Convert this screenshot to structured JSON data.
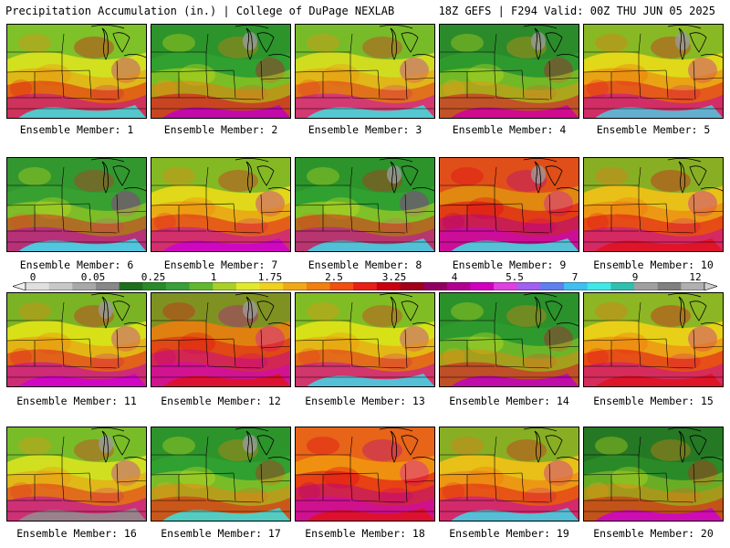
{
  "header": {
    "left": "Precipitation Accumulation (in.) | College of DuPage NEXLAB",
    "right": "18Z GEFS | F294 Valid: 00Z THU JUN 05 2025"
  },
  "panels": [
    {
      "label": "Ensemble Member: 1",
      "base": "#d2e020",
      "bands": [
        {
          "c": "#f08a10",
          "o": 0.45
        },
        {
          "c": "#e00010",
          "o": 0.45
        },
        {
          "c": "#c000a0",
          "o": 0.5
        }
      ],
      "bottom": "#40e0e0",
      "north": "#38a830",
      "gray": 0
    },
    {
      "label": "Ensemble Member: 2",
      "base": "#30a030",
      "bands": [
        {
          "c": "#d8e018",
          "o": 0.45
        },
        {
          "c": "#f07810",
          "o": 0.5
        },
        {
          "c": "#d8002a",
          "o": 0.55
        }
      ],
      "bottom": "#c000c0",
      "north": "#2a8a28",
      "gray": 1
    },
    {
      "label": "Ensemble Member: 3",
      "base": "#d0dc20",
      "bands": [
        {
          "c": "#f09010",
          "o": 0.5
        },
        {
          "c": "#e02020",
          "o": 0.45
        },
        {
          "c": "#c800c8",
          "o": 0.5
        }
      ],
      "bottom": "#40e0e0",
      "north": "#30a030",
      "gray": 0
    },
    {
      "label": "Ensemble Member: 4",
      "base": "#2e9a2e",
      "bands": [
        {
          "c": "#c8e020",
          "o": 0.45
        },
        {
          "c": "#f09010",
          "o": 0.45
        },
        {
          "c": "#d80030",
          "o": 0.5
        }
      ],
      "bottom": "#d000a0",
      "north": "#2a8028",
      "gray": 1
    },
    {
      "label": "Ensemble Member: 5",
      "base": "#e0d818",
      "bands": [
        {
          "c": "#f07010",
          "o": 0.5
        },
        {
          "c": "#e01020",
          "o": 0.5
        },
        {
          "c": "#c000b0",
          "o": 0.5
        }
      ],
      "bottom": "#50c8e0",
      "north": "#40a030",
      "gray": 1
    },
    {
      "label": "Ensemble Member: 6",
      "base": "#38a030",
      "bands": [
        {
          "c": "#d0e020",
          "o": 0.45
        },
        {
          "c": "#e02020",
          "o": 0.5
        },
        {
          "c": "#c000c0",
          "o": 0.55
        }
      ],
      "bottom": "#40e0f0",
      "north": "#2e9030",
      "gray": 0
    },
    {
      "label": "Ensemble Member: 7",
      "base": "#e0d818",
      "bands": [
        {
          "c": "#f08010",
          "o": 0.5
        },
        {
          "c": "#e01020",
          "o": 0.5
        },
        {
          "c": "#c000c0",
          "o": 0.5
        }
      ],
      "bottom": "#d000d0",
      "north": "#38a030",
      "gray": 0
    },
    {
      "label": "Ensemble Member: 8",
      "base": "#30a030",
      "bands": [
        {
          "c": "#d0e020",
          "o": 0.5
        },
        {
          "c": "#e01818",
          "o": 0.5
        },
        {
          "c": "#c000c0",
          "o": 0.5
        }
      ],
      "bottom": "#40d8e8",
      "north": "#2a8a28",
      "gray": 1
    },
    {
      "label": "Ensemble Member: 9",
      "base": "#e08810",
      "bands": [
        {
          "c": "#e00018",
          "o": 0.55
        },
        {
          "c": "#b00090",
          "o": 0.5
        },
        {
          "c": "#d000d0",
          "o": 0.55
        }
      ],
      "bottom": "#40e0e0",
      "north": "#e02020",
      "gray": 1
    },
    {
      "label": "Ensemble Member: 10",
      "base": "#e8c018",
      "bands": [
        {
          "c": "#f07010",
          "o": 0.5
        },
        {
          "c": "#e00018",
          "o": 0.5
        },
        {
          "c": "#c000c0",
          "o": 0.45
        }
      ],
      "bottom": "#e01020",
      "north": "#38a030",
      "gray": 0
    },
    {
      "label": "Ensemble Member: 11",
      "base": "#d8e018",
      "bands": [
        {
          "c": "#f08010",
          "o": 0.45
        },
        {
          "c": "#e01020",
          "o": 0.5
        },
        {
          "c": "#c000c0",
          "o": 0.55
        }
      ],
      "bottom": "#d000d0",
      "north": "#2e9030",
      "gray": 1
    },
    {
      "label": "Ensemble Member: 12",
      "base": "#e08010",
      "bands": [
        {
          "c": "#e01018",
          "o": 0.5
        },
        {
          "c": "#c000a0",
          "o": 0.45
        },
        {
          "c": "#d000d0",
          "o": 0.5
        }
      ],
      "bottom": "#e01020",
      "north": "#30a030",
      "gray": 1
    },
    {
      "label": "Ensemble Member: 13",
      "base": "#d8e018",
      "bands": [
        {
          "c": "#f09010",
          "o": 0.5
        },
        {
          "c": "#e02020",
          "o": 0.5
        },
        {
          "c": "#c000c0",
          "o": 0.5
        }
      ],
      "bottom": "#40d8e8",
      "north": "#38a030",
      "gray": 0
    },
    {
      "label": "Ensemble Member: 14",
      "base": "#2e9a2e",
      "bands": [
        {
          "c": "#c8e020",
          "o": 0.4
        },
        {
          "c": "#f08010",
          "o": 0.45
        },
        {
          "c": "#d80030",
          "o": 0.5
        }
      ],
      "bottom": "#c000c0",
      "north": "#2a8a28",
      "gray": 0
    },
    {
      "label": "Ensemble Member: 15",
      "base": "#e8d018",
      "bands": [
        {
          "c": "#f07010",
          "o": 0.5
        },
        {
          "c": "#e00018",
          "o": 0.5
        },
        {
          "c": "#c000b0",
          "o": 0.45
        }
      ],
      "bottom": "#e01020",
      "north": "#40a030",
      "gray": 0
    },
    {
      "label": "Ensemble Member: 16",
      "base": "#d0e020",
      "bands": [
        {
          "c": "#f09010",
          "o": 0.5
        },
        {
          "c": "#e02020",
          "o": 0.5
        },
        {
          "c": "#c000c0",
          "o": 0.55
        }
      ],
      "bottom": "#909090",
      "north": "#30a030",
      "gray": 1
    },
    {
      "label": "Ensemble Member: 17",
      "base": "#30a030",
      "bands": [
        {
          "c": "#d0e020",
          "o": 0.45
        },
        {
          "c": "#f08010",
          "o": 0.5
        },
        {
          "c": "#e01018",
          "o": 0.5
        }
      ],
      "bottom": "#40e0e0",
      "north": "#2a8a28",
      "gray": 1
    },
    {
      "label": "Ensemble Member: 18",
      "base": "#f09010",
      "bands": [
        {
          "c": "#e00018",
          "o": 0.55
        },
        {
          "c": "#b00090",
          "o": 0.45
        },
        {
          "c": "#d000d0",
          "o": 0.5
        }
      ],
      "bottom": "#e01020",
      "north": "#e04020",
      "gray": 0
    },
    {
      "label": "Ensemble Member: 19",
      "base": "#e8c018",
      "bands": [
        {
          "c": "#f07010",
          "o": 0.5
        },
        {
          "c": "#e01018",
          "o": 0.5
        },
        {
          "c": "#c000c0",
          "o": 0.5
        }
      ],
      "bottom": "#40d8e8",
      "north": "#38a030",
      "gray": 0
    },
    {
      "label": "Ensemble Member: 20",
      "base": "#2a8a28",
      "bands": [
        {
          "c": "#c8e020",
          "o": 0.4
        },
        {
          "c": "#f08010",
          "o": 0.45
        },
        {
          "c": "#e01018",
          "o": 0.5
        }
      ],
      "bottom": "#d000d0",
      "north": "#206a20",
      "gray": 0
    }
  ],
  "colorbar": {
    "ticks": [
      "0",
      "0.05",
      "0.25",
      "1",
      "1.75",
      "2.5",
      "3.25",
      "4",
      "5.5",
      "7",
      "9",
      "12"
    ],
    "colors": [
      "#e0e0e0",
      "#c8c8c8",
      "#a8a8a8",
      "#888888",
      "#1e6e1e",
      "#2a8a2a",
      "#3aa03a",
      "#60b830",
      "#a8d028",
      "#e0e830",
      "#f0d020",
      "#f0a818",
      "#f08010",
      "#f05010",
      "#e82018",
      "#c80010",
      "#a00018",
      "#900060",
      "#b00090",
      "#d000c0",
      "#e040e0",
      "#a060f0",
      "#6080f0",
      "#40c0f0",
      "#40e8e8",
      "#30c0b0",
      "#a0a0a0",
      "#808080",
      "#b0b0b0"
    ]
  }
}
